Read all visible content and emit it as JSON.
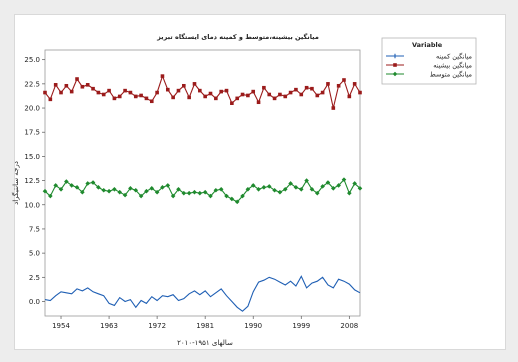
{
  "chart_data": {
    "type": "line",
    "title": "میانگین بیشینه،متوسط و کمینه دمای ایستگاه تبریز",
    "xlabel": "سالهای ۱۹۵۱-۲۰۱۰",
    "ylabel": "درجه سانتیگراد",
    "xlim": [
      1951,
      2010
    ],
    "ylim": [
      -1.5,
      26
    ],
    "xticks": [
      1954,
      1963,
      1972,
      1981,
      1990,
      1999,
      2008
    ],
    "yticks": [
      0.0,
      2.5,
      5.0,
      7.5,
      10.0,
      12.5,
      15.0,
      17.5,
      20.0,
      22.5,
      25.0
    ],
    "ytick_labels": [
      "0.0",
      "2.5",
      "5.0",
      "7.5",
      "10.0",
      "12.5",
      "15.0",
      "17.5",
      "20.0",
      "22.5",
      "25.0"
    ],
    "legend": {
      "title": "Variable",
      "placement": "right"
    },
    "grid": false,
    "series": [
      {
        "name": "میانگین کمینه",
        "color": "#1f5fb4",
        "marker": "plus",
        "x": [
          1951,
          1952,
          1953,
          1954,
          1955,
          1956,
          1957,
          1958,
          1959,
          1960,
          1961,
          1962,
          1963,
          1964,
          1965,
          1966,
          1967,
          1968,
          1969,
          1970,
          1971,
          1972,
          1973,
          1974,
          1975,
          1976,
          1977,
          1978,
          1979,
          1980,
          1981,
          1982,
          1983,
          1984,
          1985,
          1986,
          1987,
          1988,
          1989,
          1990,
          1991,
          1992,
          1993,
          1994,
          1995,
          1996,
          1997,
          1998,
          1999,
          2000,
          2001,
          2002,
          2003,
          2004,
          2005,
          2006,
          2007,
          2008,
          2009,
          2010
        ],
        "values": [
          0.2,
          0.1,
          0.6,
          1.0,
          0.9,
          0.8,
          1.3,
          1.1,
          1.4,
          1.0,
          0.8,
          0.6,
          -0.2,
          -0.4,
          0.4,
          0.0,
          0.2,
          -0.6,
          0.1,
          -0.2,
          0.5,
          0.1,
          0.6,
          0.5,
          0.7,
          0.1,
          0.3,
          0.8,
          1.1,
          0.7,
          1.1,
          0.5,
          0.9,
          1.3,
          0.6,
          0.0,
          -0.6,
          -1.0,
          -0.5,
          1.0,
          2.0,
          2.2,
          2.5,
          2.3,
          2.0,
          1.7,
          2.1,
          1.6,
          2.6,
          1.4,
          1.9,
          2.1,
          2.5,
          1.7,
          1.4,
          2.3,
          2.1,
          1.8,
          1.2,
          0.9
        ]
      },
      {
        "name": "میانگین بیشینه",
        "color": "#9b1b1b",
        "marker": "square",
        "x": [
          1951,
          1952,
          1953,
          1954,
          1955,
          1956,
          1957,
          1958,
          1959,
          1960,
          1961,
          1962,
          1963,
          1964,
          1965,
          1966,
          1967,
          1968,
          1969,
          1970,
          1971,
          1972,
          1973,
          1974,
          1975,
          1976,
          1977,
          1978,
          1979,
          1980,
          1981,
          1982,
          1983,
          1984,
          1985,
          1986,
          1987,
          1988,
          1989,
          1990,
          1991,
          1992,
          1993,
          1994,
          1995,
          1996,
          1997,
          1998,
          1999,
          2000,
          2001,
          2002,
          2003,
          2004,
          2005,
          2006,
          2007,
          2008,
          2009,
          2010
        ],
        "values": [
          21.6,
          20.9,
          22.4,
          21.6,
          22.3,
          21.7,
          23.0,
          22.2,
          22.4,
          22.0,
          21.6,
          21.4,
          21.8,
          21.0,
          21.2,
          21.8,
          21.6,
          21.2,
          21.3,
          21.0,
          20.7,
          21.6,
          23.3,
          21.9,
          21.1,
          21.8,
          22.3,
          21.1,
          22.5,
          21.8,
          21.2,
          21.5,
          21.0,
          21.7,
          21.8,
          20.5,
          21.0,
          21.4,
          21.3,
          21.7,
          20.6,
          22.1,
          21.4,
          21.0,
          21.4,
          21.2,
          21.6,
          21.9,
          21.4,
          22.1,
          22.0,
          21.3,
          21.6,
          22.5,
          20.0,
          22.3,
          22.9,
          21.2,
          22.5,
          21.6
        ]
      },
      {
        "name": "میانگین متوسط",
        "color": "#1f8a2e",
        "marker": "diamond",
        "x": [
          1951,
          1952,
          1953,
          1954,
          1955,
          1956,
          1957,
          1958,
          1959,
          1960,
          1961,
          1962,
          1963,
          1964,
          1965,
          1966,
          1967,
          1968,
          1969,
          1970,
          1971,
          1972,
          1973,
          1974,
          1975,
          1976,
          1977,
          1978,
          1979,
          1980,
          1981,
          1982,
          1983,
          1984,
          1985,
          1986,
          1987,
          1988,
          1989,
          1990,
          1991,
          1992,
          1993,
          1994,
          1995,
          1996,
          1997,
          1998,
          1999,
          2000,
          2001,
          2002,
          2003,
          2004,
          2005,
          2006,
          2007,
          2008,
          2009,
          2010
        ],
        "values": [
          11.4,
          10.9,
          12.0,
          11.6,
          12.4,
          12.0,
          11.8,
          11.3,
          12.2,
          12.3,
          11.8,
          11.5,
          11.4,
          11.6,
          11.3,
          11.0,
          11.7,
          11.5,
          10.9,
          11.4,
          11.7,
          11.3,
          11.8,
          12.0,
          10.9,
          11.6,
          11.2,
          11.2,
          11.3,
          11.2,
          11.3,
          10.9,
          11.5,
          11.6,
          10.9,
          10.6,
          10.3,
          10.9,
          11.6,
          12.0,
          11.6,
          11.8,
          11.9,
          11.5,
          11.3,
          11.6,
          12.2,
          11.8,
          11.6,
          12.5,
          11.6,
          11.2,
          11.9,
          12.3,
          11.7,
          12.0,
          12.6,
          11.2,
          12.2,
          11.7
        ]
      }
    ]
  }
}
